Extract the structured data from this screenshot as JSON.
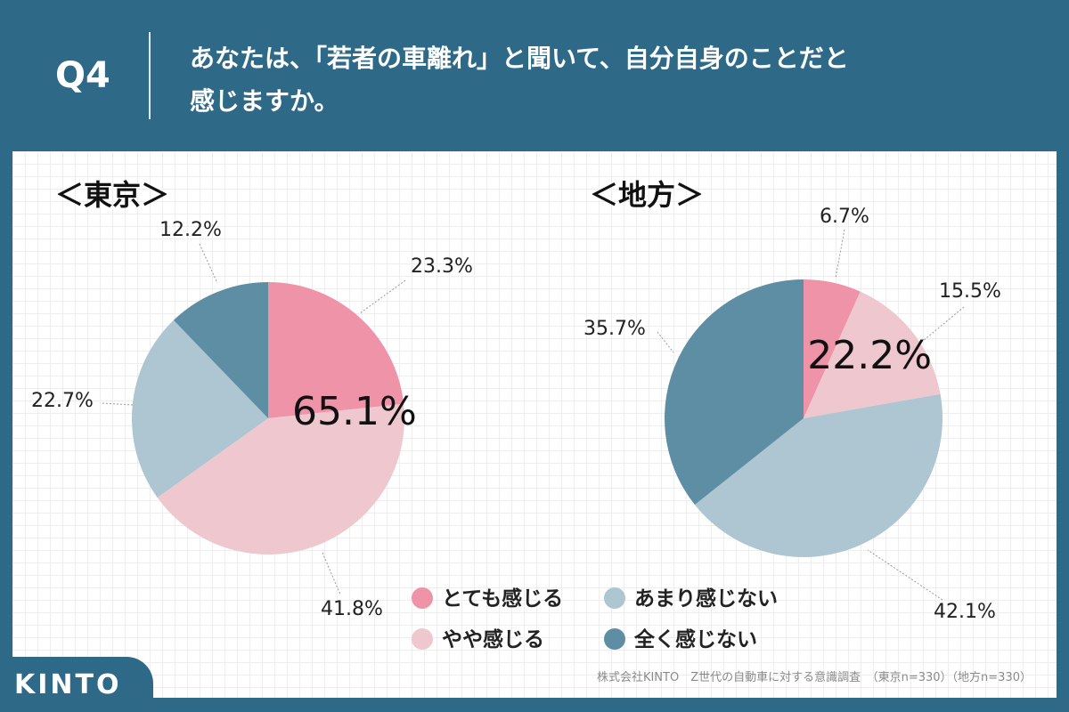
{
  "header": {
    "qnum": "Q4",
    "question_line1": "あなたは、「若者の車離れ」と聞いて、自分自身のことだと",
    "question_line2": "感じますか。"
  },
  "colors": {
    "background": "#2e6a88",
    "slice_1": "#ef93a9",
    "slice_2": "#efc8cf",
    "slice_3": "#adc6d2",
    "slice_4": "#5e8ea4"
  },
  "legend": {
    "items": [
      "とても感じる",
      "やや感じる",
      "あまり感じない",
      "全く感じない"
    ]
  },
  "chart_data": [
    {
      "type": "pie",
      "title": "＜東京＞",
      "categories": [
        "とても感じる",
        "やや感じる",
        "あまり感じない",
        "全く感じない"
      ],
      "values": [
        23.3,
        41.8,
        22.7,
        12.2
      ],
      "labels": [
        "23.3%",
        "41.8%",
        "22.7%",
        "12.2%"
      ],
      "combined_label": "65.1%"
    },
    {
      "type": "pie",
      "title": "＜地方＞",
      "categories": [
        "とても感じる",
        "やや感じる",
        "あまり感じない",
        "全く感じない"
      ],
      "values": [
        6.7,
        15.5,
        42.1,
        35.7
      ],
      "labels": [
        "6.7%",
        "15.5%",
        "42.1%",
        "35.7%"
      ],
      "combined_label": "22.2%"
    }
  ],
  "footer": {
    "brand": "KINTO",
    "source": "株式会社KINTO　Z世代の自動車に対する意識調査　（東京n=330）（地方n=330）"
  }
}
